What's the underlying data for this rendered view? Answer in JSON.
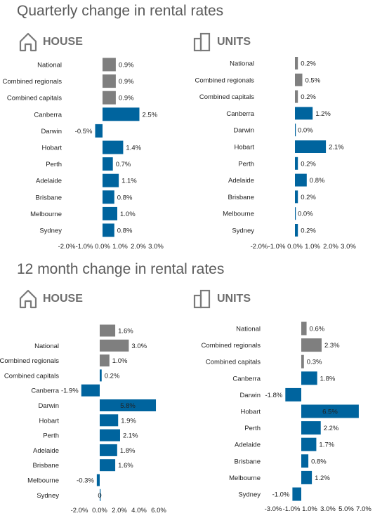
{
  "sections": [
    {
      "title": "Quarterly change in rental rates"
    },
    {
      "title": "12 month change in rental rates"
    }
  ],
  "panels": [
    {
      "title": "HOUSE",
      "icon": "house-icon"
    },
    {
      "title": "UNITS",
      "icon": "apartment-icon"
    },
    {
      "title": "HOUSE",
      "icon": "house-icon"
    },
    {
      "title": "UNITS",
      "icon": "apartment-icon"
    }
  ],
  "colors": {
    "grey": "#7f7f7f",
    "blue": "#00649e"
  },
  "chart_data": [
    {
      "type": "bar",
      "orientation": "horizontal",
      "title": "Quarterly change in rental rates",
      "subtitle": "HOUSE",
      "categories": [
        "National",
        "Combined regionals",
        "Combined capitals",
        "Canberra",
        "Darwin",
        "Hobart",
        "Perth",
        "Adelaide",
        "Brisbane",
        "Melbourne",
        "Sydney"
      ],
      "values": [
        0.9,
        0.9,
        0.9,
        2.5,
        -0.5,
        1.4,
        0.7,
        1.1,
        0.8,
        1.0,
        0.8
      ],
      "labels": [
        "0.9%",
        "0.9%",
        "0.9%",
        "2.5%",
        "-0.5%",
        "1.4%",
        "0.7%",
        "1.1%",
        "0.8%",
        "1.0%",
        "0.8%"
      ],
      "x_ticks": [
        "-2.0%",
        "-1.0%",
        "0.0%",
        "1.0%",
        "2.0%",
        "3.0%"
      ],
      "xlim": [
        -2,
        3
      ],
      "grid": false
    },
    {
      "type": "bar",
      "orientation": "horizontal",
      "title": "Quarterly change in rental rates",
      "subtitle": "UNITS",
      "categories": [
        "National",
        "Combined regionals",
        "Combined capitals",
        "Canberra",
        "Darwin",
        "Hobart",
        "Perth",
        "Adelaide",
        "Brisbane",
        "Melbourne",
        "Sydney"
      ],
      "values": [
        0.2,
        0.5,
        0.2,
        1.2,
        0.0,
        2.1,
        0.2,
        0.8,
        0.2,
        0.0,
        0.2
      ],
      "labels": [
        "0.2%",
        "0.5%",
        "0.2%",
        "1.2%",
        "0.0%",
        "2.1%",
        "0.2%",
        "0.8%",
        "0.2%",
        "0.0%",
        "0.2%"
      ],
      "x_ticks": [
        "-2.0%",
        "-1.0%",
        "0.0%",
        "1.0%",
        "2.0%",
        "3.0%"
      ],
      "xlim": [
        -2,
        3
      ],
      "grid": false
    },
    {
      "type": "bar",
      "orientation": "horizontal",
      "title": "12 month change in rental rates",
      "subtitle": "HOUSE",
      "categories": [
        "",
        "National",
        "Combined regionals",
        "Combined capitals",
        "Canberra",
        "Darwin",
        "Hobart",
        "Perth",
        "Adelaide",
        "Brisbane",
        "Melbourne",
        "Sydney"
      ],
      "values": [
        1.6,
        3.0,
        1.0,
        0.2,
        -1.9,
        5.8,
        1.9,
        2.1,
        1.8,
        1.6,
        -0.3,
        0
      ],
      "labels": [
        "1.6%",
        "3.0%",
        "1.0%",
        "0.2%",
        "-1.9%",
        "5.8%",
        "1.9%",
        "2.1%",
        "1.8%",
        "1.6%",
        "-0.3%",
        "0"
      ],
      "x_ticks": [
        "-2.0%",
        "0.0%",
        "2.0%",
        "4.0%",
        "6.0%"
      ],
      "xlim": [
        -2,
        6
      ],
      "grid": false
    },
    {
      "type": "bar",
      "orientation": "horizontal",
      "title": "12 month change in rental rates",
      "subtitle": "UNITS",
      "categories": [
        "National",
        "Combined regionals",
        "Combined capitals",
        "Canberra",
        "Darwin",
        "Hobart",
        "Perth",
        "Adelaide",
        "Brisbane",
        "Melbourne",
        "Sydney"
      ],
      "values": [
        0.6,
        2.3,
        0.3,
        1.8,
        -1.8,
        6.5,
        2.2,
        1.7,
        0.8,
        1.2,
        -1.0
      ],
      "labels": [
        "0.6%",
        "2.3%",
        "0.3%",
        "1.8%",
        "-1.8%",
        "6.5%",
        "2.2%",
        "1.7%",
        "0.8%",
        "1.2%",
        "-1.0%"
      ],
      "x_ticks": [
        "-3.0%",
        "-1.0%",
        "1.0%",
        "3.0%",
        "5.0%",
        "7.0%"
      ],
      "xlim": [
        -3,
        7
      ],
      "grid": false
    }
  ]
}
